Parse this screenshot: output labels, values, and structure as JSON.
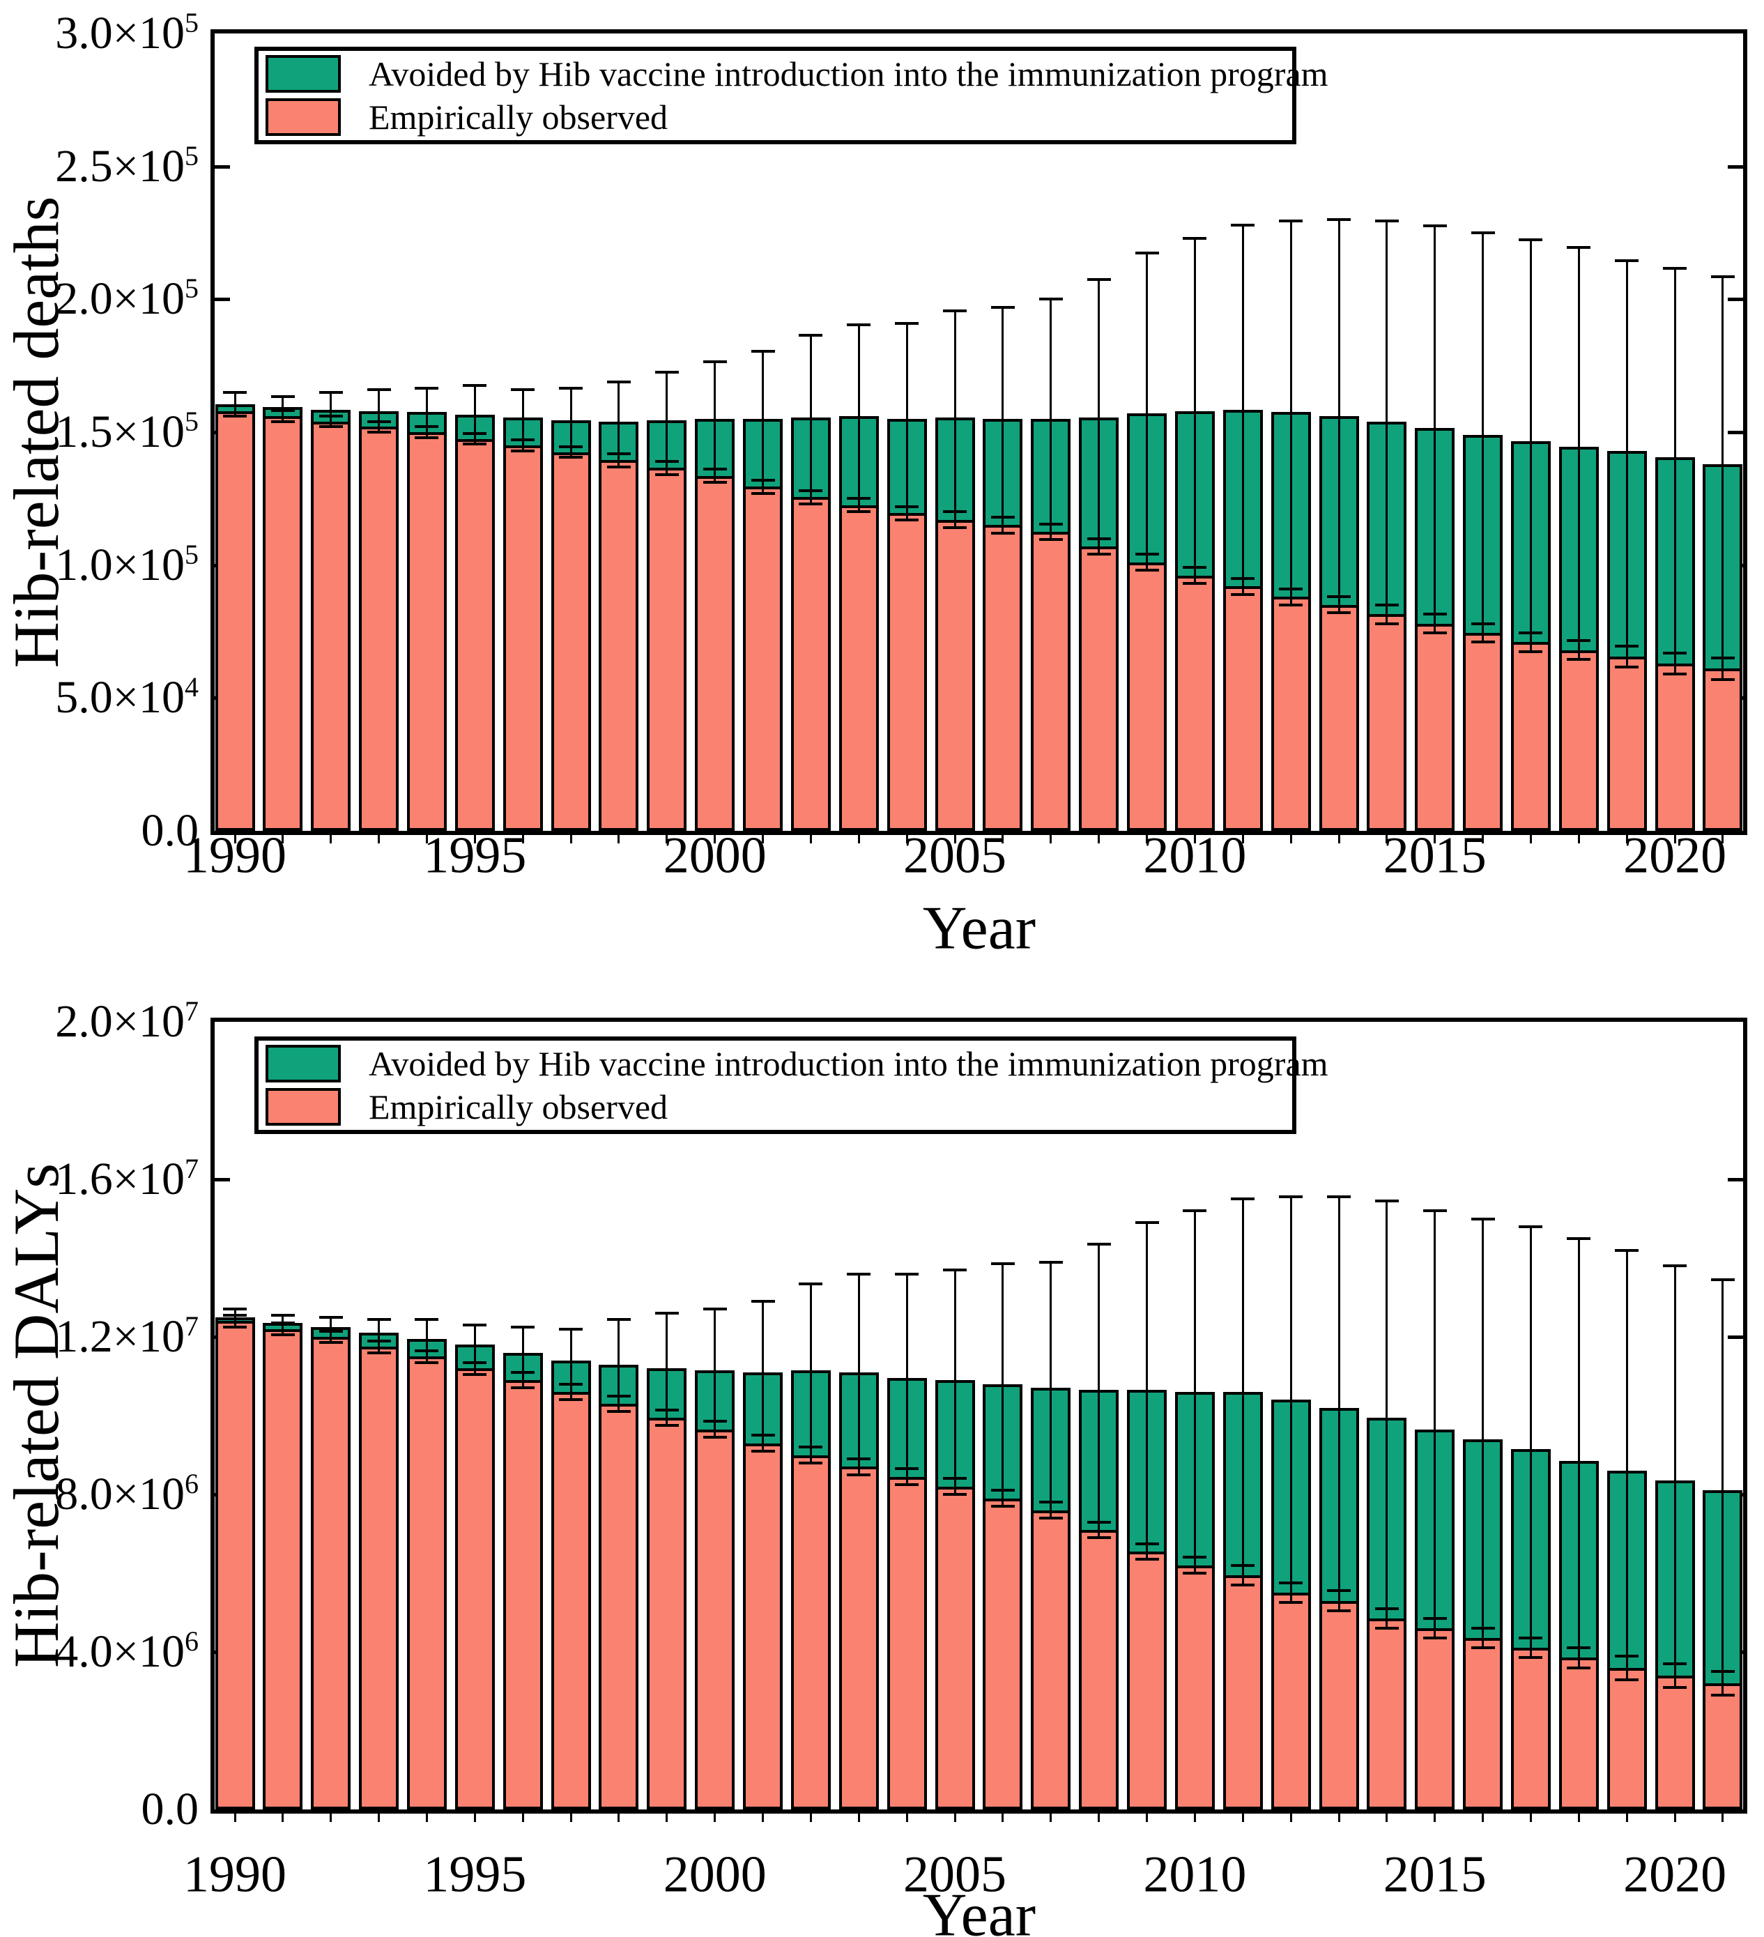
{
  "figure": {
    "background": "#ffffff",
    "ink_color": "#000000",
    "colors": {
      "avoided": "#10A27B",
      "observed": "#FA8270"
    },
    "legend_items": [
      {
        "key": "avoided",
        "label": "Avoided by Hib vaccine introduction into the immunization program"
      },
      {
        "key": "observed",
        "label": "Empirically observed"
      }
    ]
  },
  "chart_data": [
    {
      "type": "bar",
      "stacked": true,
      "title": "",
      "ylabel": "Hib-related deaths",
      "xlabel": "Year",
      "ylim": [
        0,
        300000
      ],
      "grid": false,
      "legend_position": "top-left",
      "yticks": [
        {
          "base": "3.0×10",
          "exp": "5",
          "value": 300000
        },
        {
          "base": "2.5×10",
          "exp": "5",
          "value": 250000
        },
        {
          "base": "2.0×10",
          "exp": "5",
          "value": 200000
        },
        {
          "base": "1.5×10",
          "exp": "5",
          "value": 150000
        },
        {
          "base": "1.0×10",
          "exp": "5",
          "value": 100000
        },
        {
          "base": "5.0×10",
          "exp": "4",
          "value": 50000
        },
        {
          "base": "0.0",
          "exp": "",
          "value": 0
        }
      ],
      "xticks": [
        {
          "label": "1990",
          "year": 1990
        },
        {
          "label": "1995",
          "year": 1995
        },
        {
          "label": "2000",
          "year": 2000
        },
        {
          "label": "2005",
          "year": 2005
        },
        {
          "label": "2010",
          "year": 2010
        },
        {
          "label": "2015",
          "year": 2015
        },
        {
          "label": "2020",
          "year": 2020
        }
      ],
      "categories": [
        "1990",
        "1991",
        "1992",
        "1993",
        "1994",
        "1995",
        "1996",
        "1997",
        "1998",
        "1999",
        "2000",
        "2001",
        "2002",
        "2003",
        "2004",
        "2005",
        "2006",
        "2007",
        "2008",
        "2009",
        "2010",
        "2011",
        "2012",
        "2013",
        "2014",
        "2015",
        "2016",
        "2017",
        "2018",
        "2019",
        "2020",
        "2021"
      ],
      "series": [
        {
          "name": "Empirically observed",
          "key": "observed",
          "values": [
            158000,
            156000,
            154000,
            152000,
            150000,
            147500,
            145000,
            142500,
            139500,
            136500,
            133500,
            129500,
            125500,
            122500,
            119500,
            117000,
            115000,
            112500,
            107000,
            101000,
            96000,
            92000,
            88000,
            85000,
            81500,
            78000,
            74500,
            71000,
            68000,
            65500,
            63000,
            61000
          ]
        },
        {
          "name": "Avoided by Hib vaccine introduction into the immunization program",
          "key": "avoided",
          "values": [
            2500,
            3500,
            4500,
            6000,
            7500,
            9000,
            10500,
            12000,
            14500,
            18000,
            21500,
            25500,
            30000,
            33500,
            35500,
            38500,
            40000,
            42500,
            48500,
            56000,
            62000,
            66500,
            69500,
            71000,
            72500,
            73500,
            74500,
            75500,
            76500,
            77500,
            77500,
            77000
          ]
        }
      ],
      "error_bars": {
        "upper": [
          165000,
          163500,
          165000,
          166000,
          166500,
          167500,
          166000,
          166500,
          169000,
          172500,
          176500,
          180500,
          186500,
          190500,
          191000,
          195500,
          197000,
          200000,
          207500,
          217500,
          223000,
          228000,
          229500,
          230000,
          229500,
          227500,
          225000,
          222500,
          219500,
          214500,
          211500,
          208500
        ],
        "observed_err": [
          2000,
          2000,
          2000,
          2000,
          2000,
          2000,
          2000,
          2000,
          2500,
          2500,
          2500,
          2500,
          2500,
          2500,
          2500,
          3000,
          3000,
          3000,
          3000,
          3000,
          3000,
          3000,
          3000,
          3000,
          3500,
          3500,
          3500,
          3500,
          3500,
          4000,
          4000,
          4000
        ]
      }
    },
    {
      "type": "bar",
      "stacked": true,
      "title": "",
      "ylabel": "Hib-related DALYs",
      "xlabel": "Year",
      "ylim": [
        0,
        20000000
      ],
      "grid": false,
      "legend_position": "top-left",
      "yticks": [
        {
          "base": "2.0×10",
          "exp": "7",
          "value": 20000000
        },
        {
          "base": "1.6×10",
          "exp": "7",
          "value": 16000000
        },
        {
          "base": "1.2×10",
          "exp": "7",
          "value": 12000000
        },
        {
          "base": "8.0×10",
          "exp": "6",
          "value": 8000000
        },
        {
          "base": "4.0×10",
          "exp": "6",
          "value": 4000000
        },
        {
          "base": "0.0",
          "exp": "",
          "value": 0
        }
      ],
      "xticks": [
        {
          "label": "1990",
          "year": 1990
        },
        {
          "label": "1995",
          "year": 1995
        },
        {
          "label": "2000",
          "year": 2000
        },
        {
          "label": "2005",
          "year": 2005
        },
        {
          "label": "2010",
          "year": 2010
        },
        {
          "label": "2015",
          "year": 2015
        },
        {
          "label": "2020",
          "year": 2020
        }
      ],
      "categories": [
        "1990",
        "1991",
        "1992",
        "1993",
        "1994",
        "1995",
        "1996",
        "1997",
        "1998",
        "1999",
        "2000",
        "2001",
        "2002",
        "2003",
        "2004",
        "2005",
        "2006",
        "2007",
        "2008",
        "2009",
        "2010",
        "2011",
        "2012",
        "2013",
        "2014",
        "2015",
        "2016",
        "2017",
        "2018",
        "2019",
        "2020",
        "2021"
      ],
      "series": [
        {
          "name": "Empirically observed",
          "key": "observed",
          "values": [
            12400000,
            12200000,
            12000000,
            11750000,
            11500000,
            11200000,
            10900000,
            10600000,
            10300000,
            9950000,
            9650000,
            9300000,
            9000000,
            8700000,
            8450000,
            8200000,
            7900000,
            7600000,
            7100000,
            6550000,
            6200000,
            5950000,
            5500000,
            5300000,
            4850000,
            4600000,
            4350000,
            4100000,
            3850000,
            3600000,
            3400000,
            3200000
          ]
        },
        {
          "name": "Avoided by Hib vaccine introduction into the immunization program",
          "key": "avoided",
          "values": [
            100000,
            150000,
            250000,
            350000,
            450000,
            600000,
            700000,
            800000,
            1000000,
            1250000,
            1500000,
            1800000,
            2150000,
            2400000,
            2500000,
            2700000,
            2900000,
            3100000,
            3550000,
            4100000,
            4400000,
            4650000,
            4900000,
            4900000,
            5100000,
            5050000,
            5050000,
            5050000,
            5000000,
            5000000,
            4950000,
            4900000
          ]
        }
      ],
      "error_bars": {
        "upper": [
          12700000,
          12550000,
          12500000,
          12450000,
          12450000,
          12300000,
          12250000,
          12200000,
          12450000,
          12600000,
          12700000,
          12900000,
          13350000,
          13600000,
          13600000,
          13700000,
          13850000,
          13900000,
          14350000,
          14900000,
          15200000,
          15500000,
          15550000,
          15550000,
          15450000,
          15200000,
          15000000,
          14800000,
          14500000,
          14200000,
          13800000,
          13450000
        ],
        "observed_err": [
          150000,
          150000,
          150000,
          150000,
          150000,
          150000,
          200000,
          200000,
          200000,
          200000,
          200000,
          200000,
          200000,
          200000,
          200000,
          200000,
          200000,
          200000,
          200000,
          200000,
          200000,
          250000,
          250000,
          250000,
          250000,
          250000,
          250000,
          250000,
          250000,
          300000,
          300000,
          300000
        ]
      }
    }
  ]
}
